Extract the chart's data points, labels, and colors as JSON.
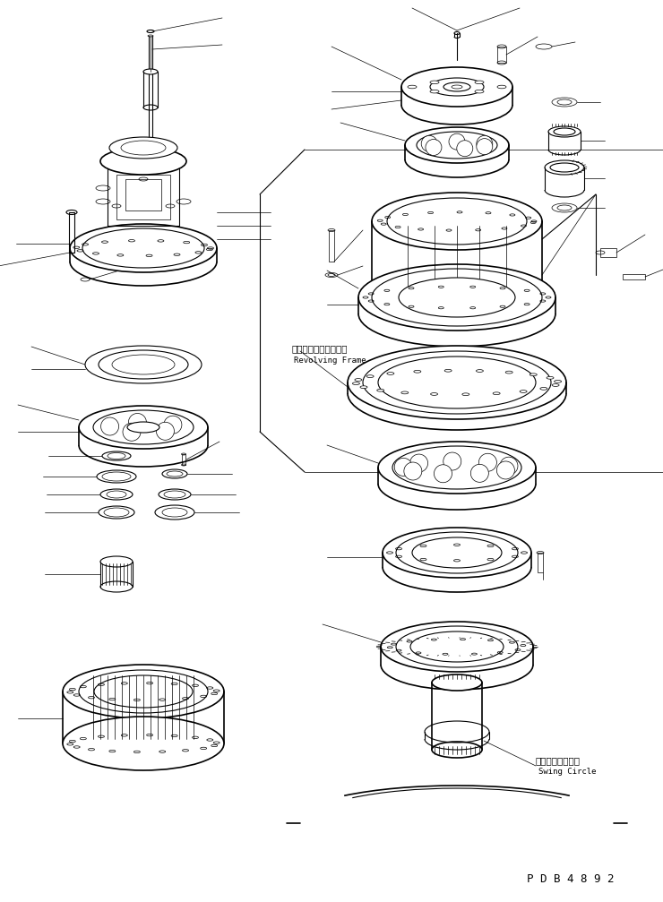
{
  "background_color": "#ffffff",
  "line_color": "#000000",
  "fig_width": 7.4,
  "fig_height": 10.07,
  "dpi": 100,
  "label_revolving_frame_jp": "レボルビングフレーム",
  "label_revolving_frame_en": "Revolving Frame",
  "label_swing_circle_jp": "スイングサークル",
  "label_swing_circle_en": "Swing Circle",
  "label_pdb": "P D B 4 8 9 2",
  "text_color": "#000000"
}
